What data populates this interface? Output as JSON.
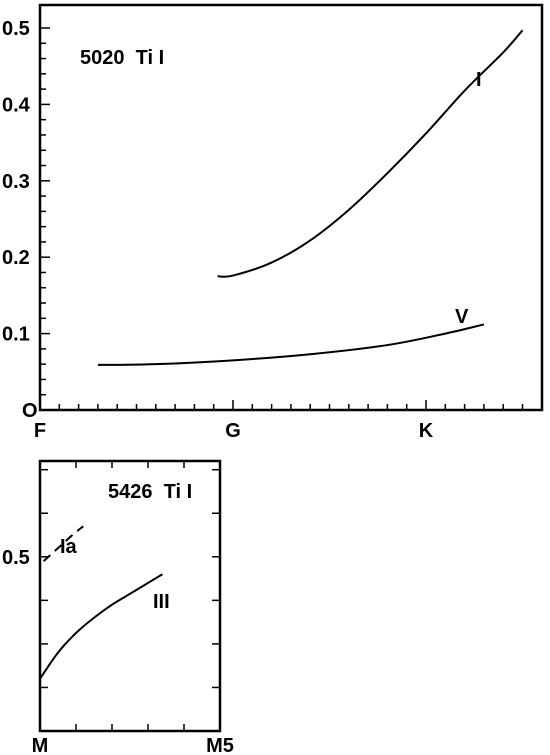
{
  "chart_data": [
    {
      "type": "line",
      "title": "5020  Ti I",
      "x_tick_labels": [
        "F",
        "G",
        "K"
      ],
      "y_tick_labels": [
        "O",
        "0.1",
        "0.2",
        "0.3",
        "0.4",
        "0.5"
      ],
      "y_ticks": [
        0,
        0.1,
        0.2,
        0.3,
        0.4,
        0.5
      ],
      "ylim": [
        0,
        0.52
      ],
      "xlim": [
        0,
        2.55
      ],
      "x_tick_positions": [
        0,
        1,
        2
      ],
      "grid": false,
      "series": [
        {
          "name": "I",
          "style": "solid",
          "x": [
            0.92,
            1.0,
            1.2,
            1.4,
            1.6,
            1.8,
            2.0,
            2.2,
            2.4,
            2.5
          ],
          "y": [
            0.175,
            0.176,
            0.193,
            0.222,
            0.262,
            0.31,
            0.362,
            0.418,
            0.468,
            0.497
          ]
        },
        {
          "name": "V",
          "style": "solid",
          "x": [
            0.3,
            0.6,
            1.0,
            1.4,
            1.8,
            2.1,
            2.3
          ],
          "y": [
            0.059,
            0.06,
            0.065,
            0.073,
            0.085,
            0.1,
            0.112
          ]
        }
      ]
    },
    {
      "type": "line",
      "title": "5426  Ti I",
      "x_tick_labels": [
        "M",
        "M5"
      ],
      "y_tick_labels": [
        "0.5"
      ],
      "y_ticks": [
        0.5
      ],
      "ylim": [
        0.1,
        0.72
      ],
      "xlim": [
        0,
        5
      ],
      "x_tick_positions": [
        0,
        5
      ],
      "grid": false,
      "series": [
        {
          "name": "Ia",
          "style": "dashed",
          "x": [
            0.1,
            0.5,
            0.9,
            1.2
          ],
          "y": [
            0.49,
            0.52,
            0.55,
            0.57
          ]
        },
        {
          "name": "III",
          "style": "solid",
          "x": [
            0.0,
            0.5,
            1.0,
            1.5,
            2.0,
            2.5,
            3.0,
            3.4
          ],
          "y": [
            0.22,
            0.28,
            0.325,
            0.36,
            0.39,
            0.415,
            0.44,
            0.46
          ]
        }
      ]
    }
  ]
}
